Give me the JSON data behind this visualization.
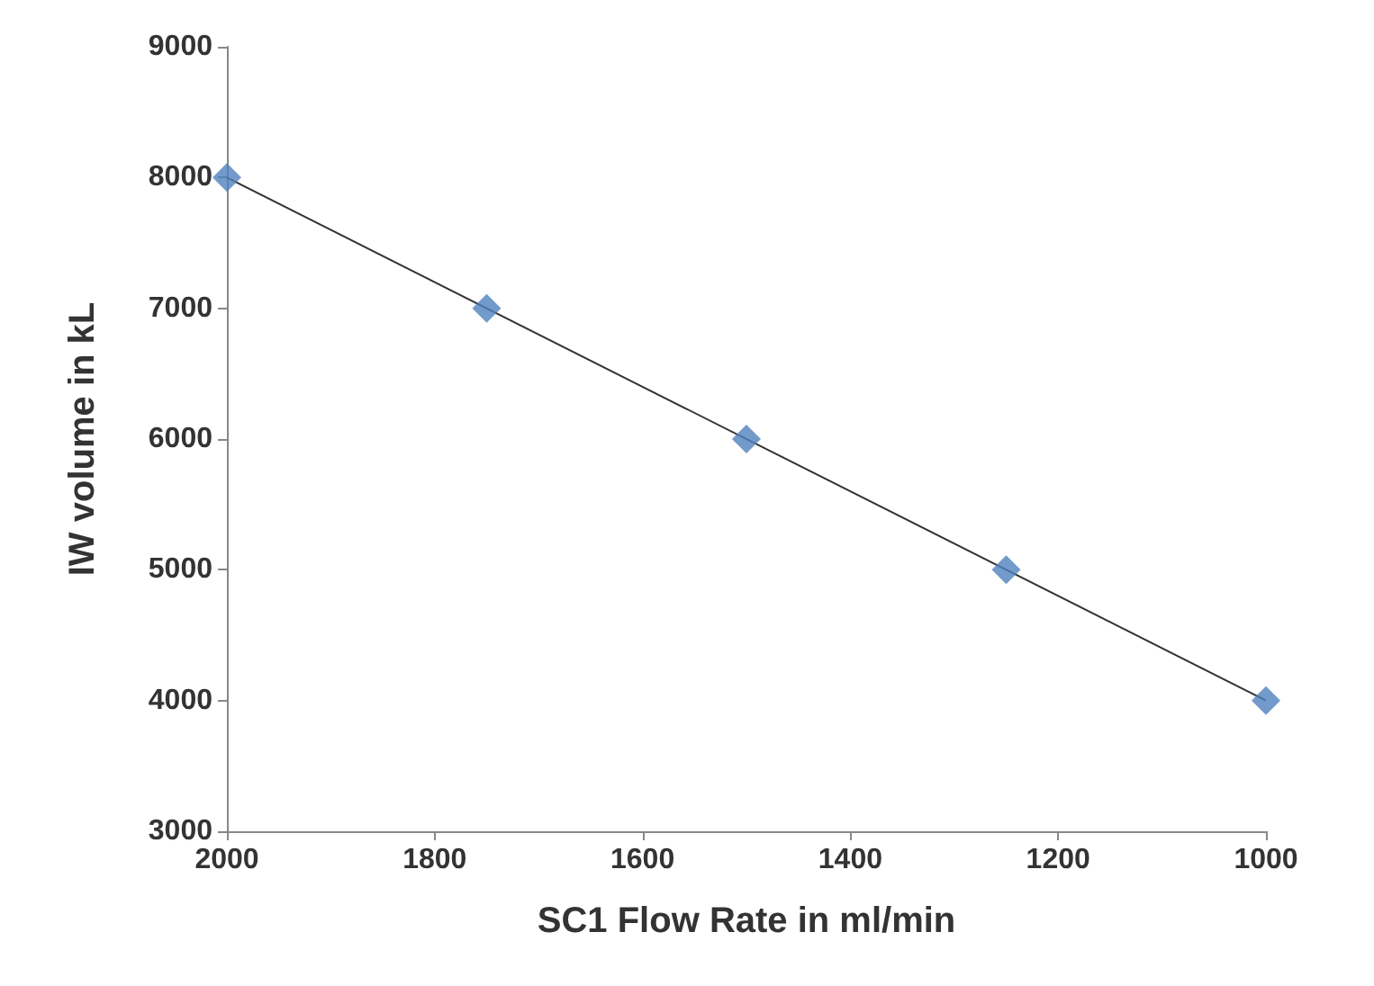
{
  "chart_data": {
    "type": "scatter",
    "xlabel": "SC1 Flow Rate in ml/min",
    "ylabel": "IW volume in kL",
    "x": [
      2000,
      1750,
      1500,
      1250,
      1000
    ],
    "xlim": [
      2000,
      1000
    ],
    "xticks": [
      2000,
      1800,
      1600,
      1400,
      1200,
      1000
    ],
    "ylim": [
      3000,
      9000
    ],
    "yticks": [
      3000,
      4000,
      5000,
      6000,
      7000,
      8000,
      9000
    ],
    "grid": false,
    "marker": "diamond",
    "series": [
      {
        "color": "#4f81bd",
        "values": [
          8000,
          7000,
          6000,
          5000,
          4000
        ]
      },
      {
        "type": "line",
        "color": "#333333",
        "x": [
          2000,
          1000
        ],
        "values": [
          8000,
          4000
        ],
        "marker": "none",
        "line_style": "solid"
      }
    ]
  }
}
